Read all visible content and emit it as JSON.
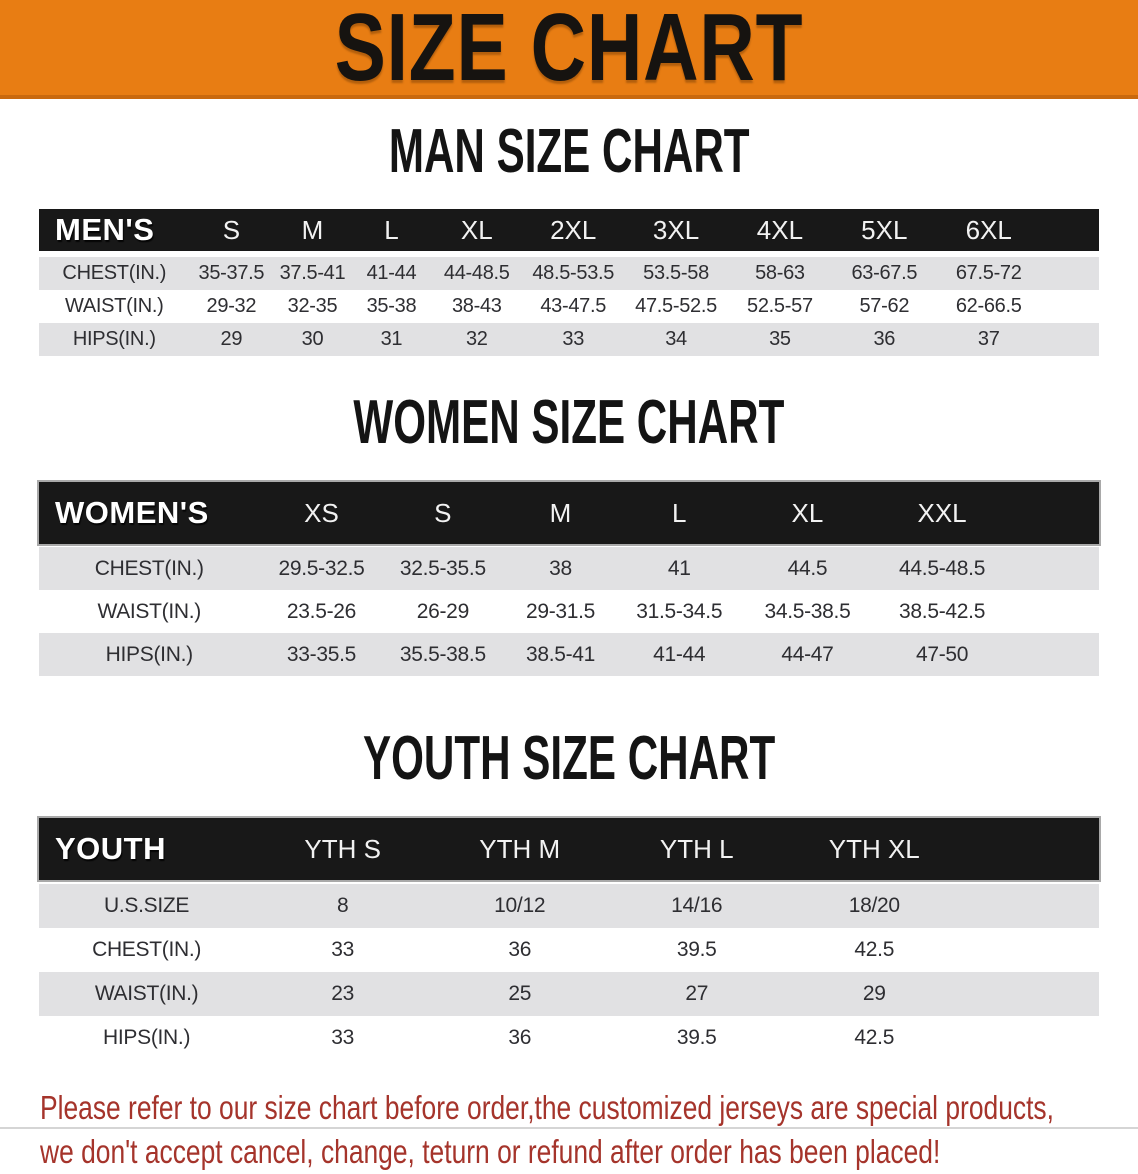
{
  "banner": {
    "title": "SIZE CHART"
  },
  "colors": {
    "banner_bg": "#e87d13",
    "banner_edge": "#c9690e",
    "header_bar_bg": "#181818",
    "stripe_gray": "#e1e1e3",
    "data_text": "#2e2e32",
    "disclaimer_red": "#a5342b"
  },
  "sections": {
    "men": {
      "title": "MAN SIZE CHART",
      "table": {
        "label": "MEN'S",
        "columns": [
          "S",
          "M",
          "L",
          "XL",
          "2XL",
          "3XL",
          "4XL",
          "5XL",
          "6XL"
        ],
        "rows": [
          {
            "label": "CHEST(IN.)",
            "values": [
              "35-37.5",
              "37.5-41",
              "41-44",
              "44-48.5",
              "48.5-53.5",
              "53.5-58",
              "58-63",
              "63-67.5",
              "67.5-72"
            ]
          },
          {
            "label": "WAIST(IN.)",
            "values": [
              "29-32",
              "32-35",
              "35-38",
              "38-43",
              "43-47.5",
              "47.5-52.5",
              "52.5-57",
              "57-62",
              "62-66.5"
            ]
          },
          {
            "label": "HIPS(IN.)",
            "values": [
              "29",
              "30",
              "31",
              "32",
              "33",
              "34",
              "35",
              "36",
              "37"
            ]
          }
        ]
      }
    },
    "women": {
      "title": "WOMEN SIZE CHART",
      "table": {
        "label": "WOMEN'S",
        "columns": [
          "XS",
          "S",
          "M",
          "L",
          "XL",
          "XXL"
        ],
        "rows": [
          {
            "label": "CHEST(IN.)",
            "values": [
              "29.5-32.5",
              "32.5-35.5",
              "38",
              "41",
              "44.5",
              "44.5-48.5"
            ]
          },
          {
            "label": "WAIST(IN.)",
            "values": [
              "23.5-26",
              "26-29",
              "29-31.5",
              "31.5-34.5",
              "34.5-38.5",
              "38.5-42.5"
            ]
          },
          {
            "label": "HIPS(IN.)",
            "values": [
              "33-35.5",
              "35.5-38.5",
              "38.5-41",
              "41-44",
              "44-47",
              "47-50"
            ]
          }
        ]
      }
    },
    "youth": {
      "title": "YOUTH SIZE CHART",
      "table": {
        "label": "YOUTH",
        "columns": [
          "YTH S",
          "YTH M",
          "YTH L",
          "YTH XL"
        ],
        "rows": [
          {
            "label": "U.S.SIZE",
            "values": [
              "8",
              "10/12",
              "14/16",
              "18/20"
            ]
          },
          {
            "label": "CHEST(IN.)",
            "values": [
              "33",
              "36",
              "39.5",
              "42.5"
            ]
          },
          {
            "label": "WAIST(IN.)",
            "values": [
              "23",
              "25",
              "27",
              "29"
            ]
          },
          {
            "label": "HIPS(IN.)",
            "values": [
              "33",
              "36",
              "39.5",
              "42.5"
            ]
          }
        ]
      }
    }
  },
  "disclaimer": {
    "line1": "Please refer to our size chart before order,the customized jerseys are special products,",
    "line2": "we don't accept cancel, change, teturn or refund after order has been placed!"
  }
}
